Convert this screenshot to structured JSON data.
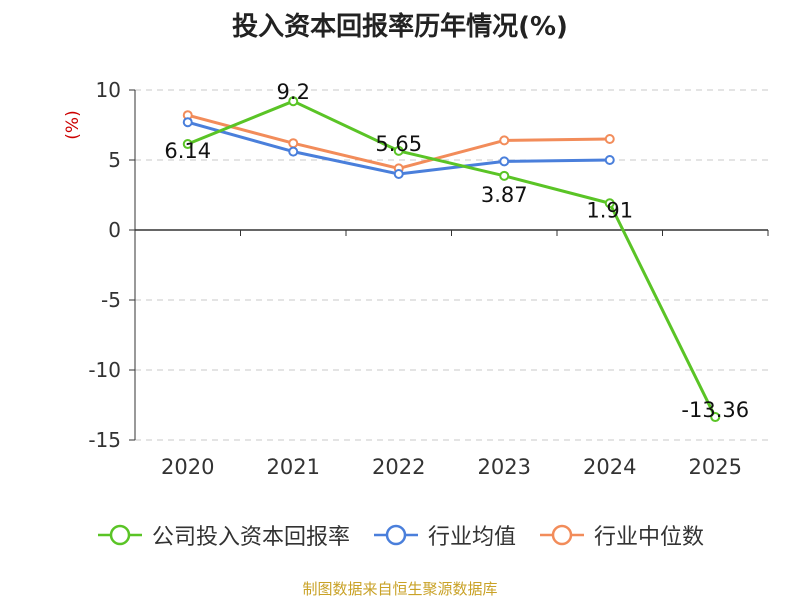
{
  "chart_data": {
    "type": "line",
    "title": "投入资本回报率历年情况(%)",
    "ylabel": "(%)",
    "xlabel": "",
    "ylim": [
      -15,
      10
    ],
    "yticks": [
      10,
      5,
      0,
      -5,
      -10,
      -15
    ],
    "grid": true,
    "legend_position": "bottom",
    "categories": [
      "2020",
      "2021",
      "2022",
      "2023",
      "2024",
      "2025"
    ],
    "series": [
      {
        "name": "公司投入资本回报率",
        "color": "#5ac426",
        "values": [
          6.14,
          9.2,
          5.65,
          3.87,
          1.91,
          -13.36
        ],
        "labels": [
          "6.14",
          "9.2",
          "5.65",
          "3.87",
          "1.91",
          "-13.36"
        ]
      },
      {
        "name": "行业均值",
        "color": "#4a7fdb",
        "values": [
          7.7,
          5.6,
          4.0,
          4.9,
          5.0,
          null
        ]
      },
      {
        "name": "行业中位数",
        "color": "#f28c5a",
        "values": [
          8.2,
          6.2,
          4.4,
          6.4,
          6.5,
          null
        ]
      }
    ]
  },
  "source_note": "制图数据来自恒生聚源数据库",
  "colors": {
    "grid": "#c8c8c8",
    "axis": "#333333",
    "ylabel": "#cc0000",
    "source": "#c9a227"
  }
}
